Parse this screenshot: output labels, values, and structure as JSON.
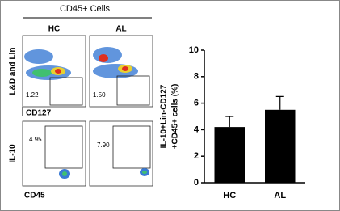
{
  "figure": {
    "header": "CD45+ Cells",
    "columns": [
      "HC",
      "AL"
    ],
    "row_labels": [
      {
        "y": "L&D and Lin",
        "x": "CD127"
      },
      {
        "y": "IL-10",
        "x": "CD45"
      }
    ],
    "gates": [
      [
        "1.22",
        "1.50"
      ],
      [
        "4.95",
        "7.90"
      ]
    ]
  },
  "chart_data": {
    "type": "bar",
    "y_label": [
      "IL-10+Lin-CD127",
      "+CD45+ cells (%)"
    ],
    "categories": [
      "HC",
      "AL"
    ],
    "values": [
      4.2,
      5.5
    ],
    "errors": [
      0.8,
      1.0
    ],
    "color": "#000000",
    "ylim": [
      0,
      10
    ],
    "yticks": [
      0,
      2,
      4,
      6,
      8,
      10
    ]
  }
}
